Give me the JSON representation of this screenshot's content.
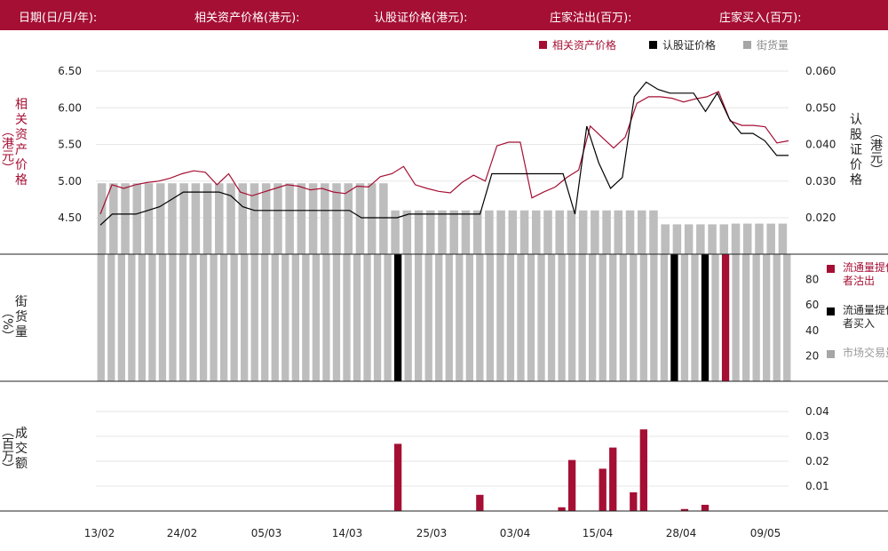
{
  "header": {
    "date_label": "日期(日/月/年):",
    "underlying_label": "相关资产价格(港元):",
    "warrant_label": "认股证价格(港元):",
    "lp_sell_label": "庄家沽出(百万):",
    "lp_buy_label": "庄家买入(百万):"
  },
  "legend": {
    "underlying": "相关资产价格",
    "warrant": "认股证价格",
    "outstanding": "街货量"
  },
  "axes": {
    "left_title": "相关资产价格",
    "left_unit": "（港元）",
    "right_title": "认股证价格",
    "right_unit": "（港元）",
    "mid_title": "街货量",
    "mid_unit": "（%）",
    "bottom_title": "成交额",
    "bottom_unit": "（百万）"
  },
  "lower_legend": {
    "lp_sell": "流通量提供者沽出",
    "lp_buy": "流通量提供者买入",
    "market": "市场交易量"
  },
  "colors": {
    "brand": "#a50f34",
    "underlying_line": "#a50f34",
    "warrant_line": "#000000",
    "bar_gray": "#bdbdbd",
    "legend_gray": "#a6a6a6"
  },
  "chart_data": [
    {
      "type": "line",
      "panel": "price",
      "x_ticks": [
        "13/02",
        "24/02",
        "05/03",
        "14/03",
        "25/03",
        "03/04",
        "15/04",
        "28/04",
        "09/05"
      ],
      "left_yticks": [
        "6.50",
        "6.00",
        "5.50",
        "5.00",
        "4.50"
      ],
      "right_yticks": [
        "0.060",
        "0.050",
        "0.040",
        "0.030",
        "0.020"
      ],
      "ylim_left": [
        4.0,
        6.5
      ],
      "ylim_right": [
        0.01,
        0.06
      ],
      "series": [
        {
          "name": "相关资产价格",
          "axis": "left",
          "values": [
            4.55,
            4.95,
            4.9,
            4.95,
            4.98,
            5.0,
            5.04,
            5.1,
            5.14,
            5.12,
            4.95,
            5.1,
            4.85,
            4.8,
            4.85,
            4.9,
            4.95,
            4.93,
            4.88,
            4.9,
            4.85,
            4.83,
            4.93,
            4.92,
            5.06,
            5.1,
            5.2,
            4.95,
            4.9,
            4.86,
            4.84,
            4.98,
            5.08,
            5.0,
            5.48,
            5.53,
            5.53,
            4.77,
            4.85,
            4.92,
            5.05,
            5.15,
            5.75,
            5.6,
            5.45,
            5.6,
            6.06,
            6.15,
            6.15,
            6.13,
            6.08,
            6.12,
            6.15,
            6.22,
            5.82,
            5.76,
            5.76,
            5.74,
            5.52,
            5.55
          ],
          "warrant_values": [
            0.018,
            0.021,
            0.021,
            0.021,
            0.022,
            0.023,
            0.025,
            0.027,
            0.027,
            0.027,
            0.027,
            0.026,
            0.023,
            0.022,
            0.022,
            0.022,
            0.022,
            0.022,
            0.022,
            0.022,
            0.022,
            0.022,
            0.02,
            0.02,
            0.02,
            0.02,
            0.021,
            0.021,
            0.021,
            0.021,
            0.021,
            0.021,
            0.021,
            0.032,
            0.032,
            0.032,
            0.032,
            0.032,
            0.032,
            0.032,
            0.021,
            0.045,
            0.035,
            0.028,
            0.031,
            0.053,
            0.057,
            0.055,
            0.054,
            0.054,
            0.054,
            0.049,
            0.054,
            0.047,
            0.043,
            0.043,
            0.041,
            0.037,
            0.037
          ]
        },
        {
          "name": "街货量",
          "axis": "left",
          "values": [
            4.97,
            4.97,
            4.97,
            4.97,
            4.97,
            4.97,
            4.97,
            4.97,
            4.97,
            4.97,
            4.97,
            4.97,
            4.97,
            4.97,
            4.97,
            4.97,
            4.97,
            4.97,
            4.97,
            4.97,
            4.97,
            4.97,
            4.97,
            4.97,
            4.97,
            4.6,
            4.6,
            4.6,
            4.6,
            4.6,
            4.6,
            4.6,
            4.6,
            4.6,
            4.6,
            4.6,
            4.6,
            4.6,
            4.6,
            4.6,
            4.6,
            4.6,
            4.6,
            4.6,
            4.6,
            4.6,
            4.6,
            4.6,
            4.41,
            4.41,
            4.41,
            4.41,
            4.41,
            4.41,
            4.42,
            4.42,
            4.42,
            4.42,
            4.42
          ]
        }
      ]
    },
    {
      "type": "bar",
      "panel": "volume_percent",
      "yticks": [
        "80",
        "60",
        "40",
        "20"
      ],
      "ylim": [
        0,
        100
      ],
      "series": [
        {
          "name": "市场交易量",
          "values": [
            100,
            100,
            100,
            100,
            100,
            100,
            100,
            100,
            100,
            100,
            100,
            100,
            100,
            100,
            100,
            100,
            100,
            100,
            100,
            100,
            100,
            100,
            100,
            100,
            100,
            100,
            100,
            100,
            100,
            100,
            100,
            100,
            100,
            100,
            100,
            100,
            100,
            100,
            100,
            100,
            100,
            100,
            100,
            100,
            100,
            100,
            100,
            100,
            100,
            100,
            100,
            100,
            100,
            100,
            100,
            100,
            100,
            100,
            100,
            100,
            100,
            100,
            100,
            100,
            100,
            100,
            100,
            100
          ]
        },
        {
          "name": "流通量提供者买入",
          "values": [
            100,
            100,
            100
          ]
        },
        {
          "name": "流通量提供者沽出",
          "values": [
            100
          ]
        }
      ]
    },
    {
      "type": "bar",
      "panel": "turnover",
      "yticks": [
        "0.04",
        "0.03",
        "0.02",
        "0.01"
      ],
      "ylim": [
        0,
        0.045
      ],
      "series": [
        {
          "name": "成交额",
          "values": [
            0.027,
            0.0065,
            0.0015,
            0.0205,
            0.017,
            0.0255,
            0.0075,
            0.0328,
            0.0008,
            0.0025
          ]
        }
      ]
    }
  ]
}
